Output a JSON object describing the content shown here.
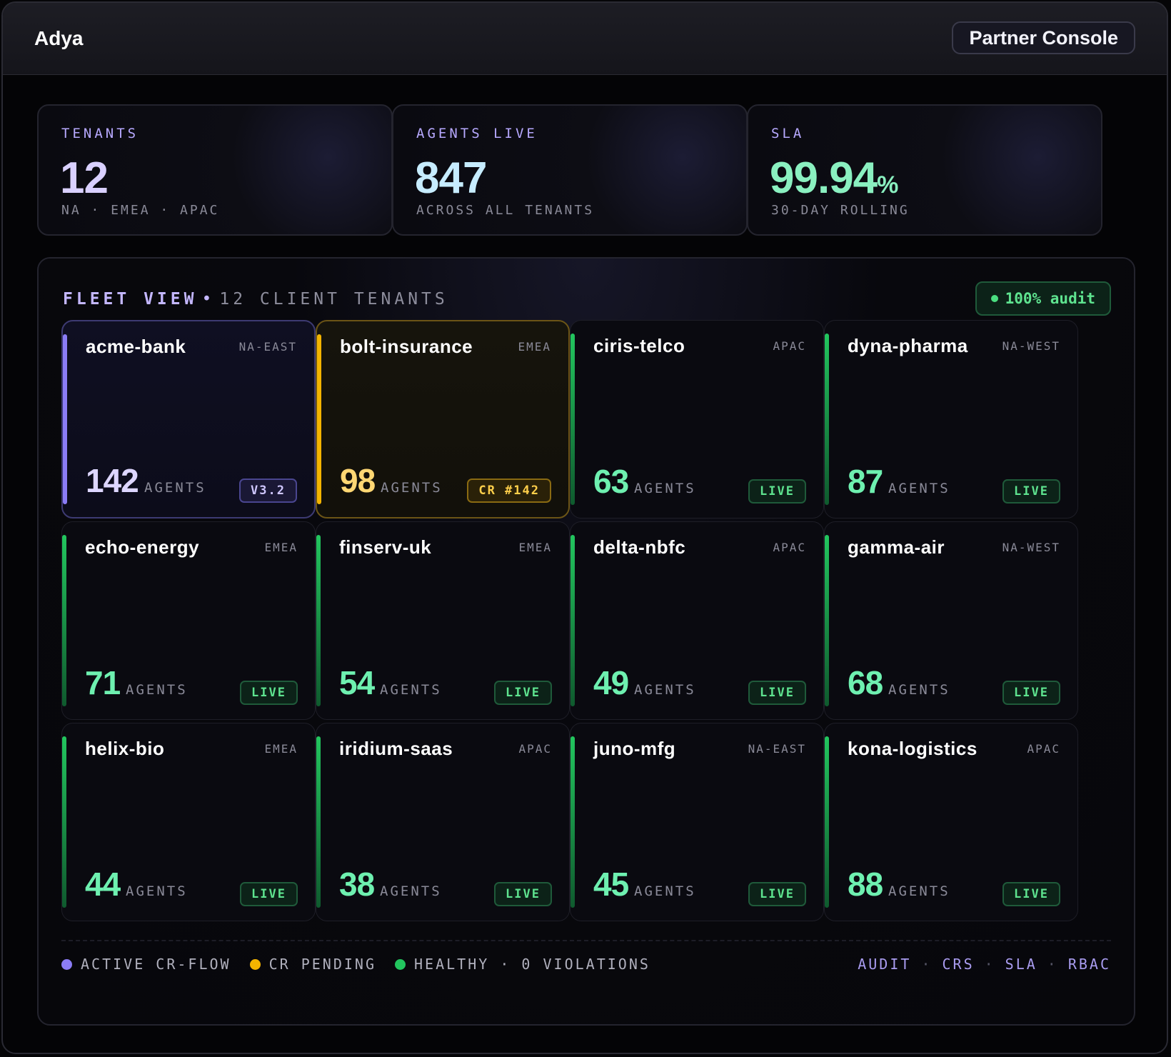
{
  "app": {
    "title": "Adya",
    "console_button": "Partner Console"
  },
  "stats": [
    {
      "label": "TENANTS",
      "value": "12",
      "unit": "",
      "sub": "NA · EMEA · APAC",
      "color": "#d9d0ff"
    },
    {
      "label": "AGENTS LIVE",
      "value": "847",
      "unit": "",
      "sub": "ACROSS ALL TENANTS",
      "color": "#c6ecff"
    },
    {
      "label": "SLA",
      "value": "99.94",
      "unit": "%",
      "sub": "30-DAY ROLLING",
      "color": "#8af0c0"
    }
  ],
  "fleet": {
    "title": "FLEET VIEW",
    "bullet": "•",
    "subtitle": "12 CLIENT TENANTS",
    "audit_badge": "100% audit",
    "agents_label": "AGENTS",
    "tenants": [
      {
        "name": "acme-bank",
        "region": "NA-EAST",
        "agents": "142",
        "badge": "V3.2",
        "status": "active-cr-flow"
      },
      {
        "name": "bolt-insurance",
        "region": "EMEA",
        "agents": "98",
        "badge": "CR #142",
        "status": "cr-pending"
      },
      {
        "name": "ciris-telco",
        "region": "APAC",
        "agents": "63",
        "badge": "LIVE",
        "status": "healthy"
      },
      {
        "name": "dyna-pharma",
        "region": "NA-WEST",
        "agents": "87",
        "badge": "LIVE",
        "status": "healthy"
      },
      {
        "name": "echo-energy",
        "region": "EMEA",
        "agents": "71",
        "badge": "LIVE",
        "status": "healthy"
      },
      {
        "name": "finserv-uk",
        "region": "EMEA",
        "agents": "54",
        "badge": "LIVE",
        "status": "healthy"
      },
      {
        "name": "delta-nbfc",
        "region": "APAC",
        "agents": "49",
        "badge": "LIVE",
        "status": "healthy"
      },
      {
        "name": "gamma-air",
        "region": "NA-WEST",
        "agents": "68",
        "badge": "LIVE",
        "status": "healthy"
      },
      {
        "name": "helix-bio",
        "region": "EMEA",
        "agents": "44",
        "badge": "LIVE",
        "status": "healthy"
      },
      {
        "name": "iridium-saas",
        "region": "APAC",
        "agents": "38",
        "badge": "LIVE",
        "status": "healthy"
      },
      {
        "name": "juno-mfg",
        "region": "NA-EAST",
        "agents": "45",
        "badge": "LIVE",
        "status": "healthy"
      },
      {
        "name": "kona-logistics",
        "region": "APAC",
        "agents": "88",
        "badge": "LIVE",
        "status": "healthy"
      }
    ]
  },
  "legend": [
    {
      "label": "ACTIVE CR-FLOW",
      "color": "#8b7cf6"
    },
    {
      "label": "CR PENDING",
      "color": "#f4b400"
    },
    {
      "label": "HEALTHY · 0 VIOLATIONS",
      "color": "#22c55e"
    }
  ],
  "footer_links": [
    "AUDIT",
    "CRS",
    "SLA",
    "RBAC"
  ],
  "footer_separator": "·"
}
